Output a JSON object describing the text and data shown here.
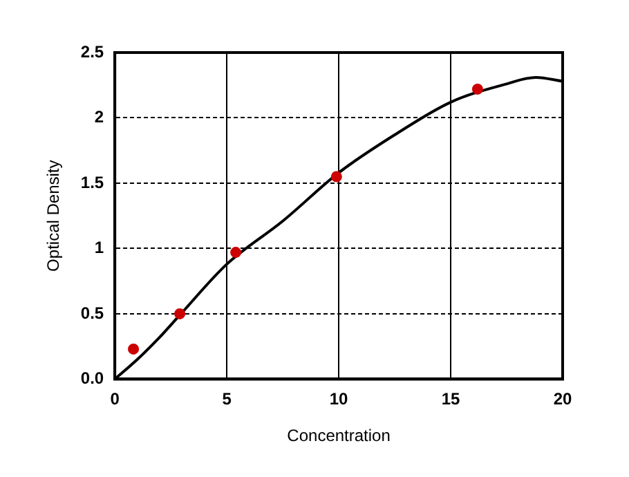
{
  "chart_data": {
    "type": "scatter",
    "xlabel": "Concentration",
    "ylabel": "Optical Density",
    "series": [
      {
        "color": "#cc0000",
        "x": [
          0.83,
          2.9,
          5.4,
          9.9,
          16.2
        ],
        "values": [
          0.23,
          0.5,
          0.97,
          1.55,
          2.22
        ],
        "marker": "circle"
      },
      {
        "type": "line",
        "color": "#000000",
        "x": [
          0,
          1,
          2,
          2.9,
          5,
          7.5,
          10,
          12.5,
          15,
          17.5,
          18.8,
          20
        ],
        "values": [
          0,
          0.15,
          0.32,
          0.49,
          0.88,
          1.21,
          1.58,
          1.87,
          2.12,
          2.26,
          2.31,
          2.28
        ],
        "marker": "none"
      }
    ],
    "xlim": [
      0,
      20
    ],
    "xticks": [
      0,
      5,
      10,
      15,
      20
    ],
    "ylim": [
      0,
      2.5
    ],
    "yticks": [
      {
        "value": 0,
        "label": "0.0"
      },
      0.5,
      1,
      1.5,
      2,
      2.5
    ],
    "grid": true,
    "legend": false
  }
}
